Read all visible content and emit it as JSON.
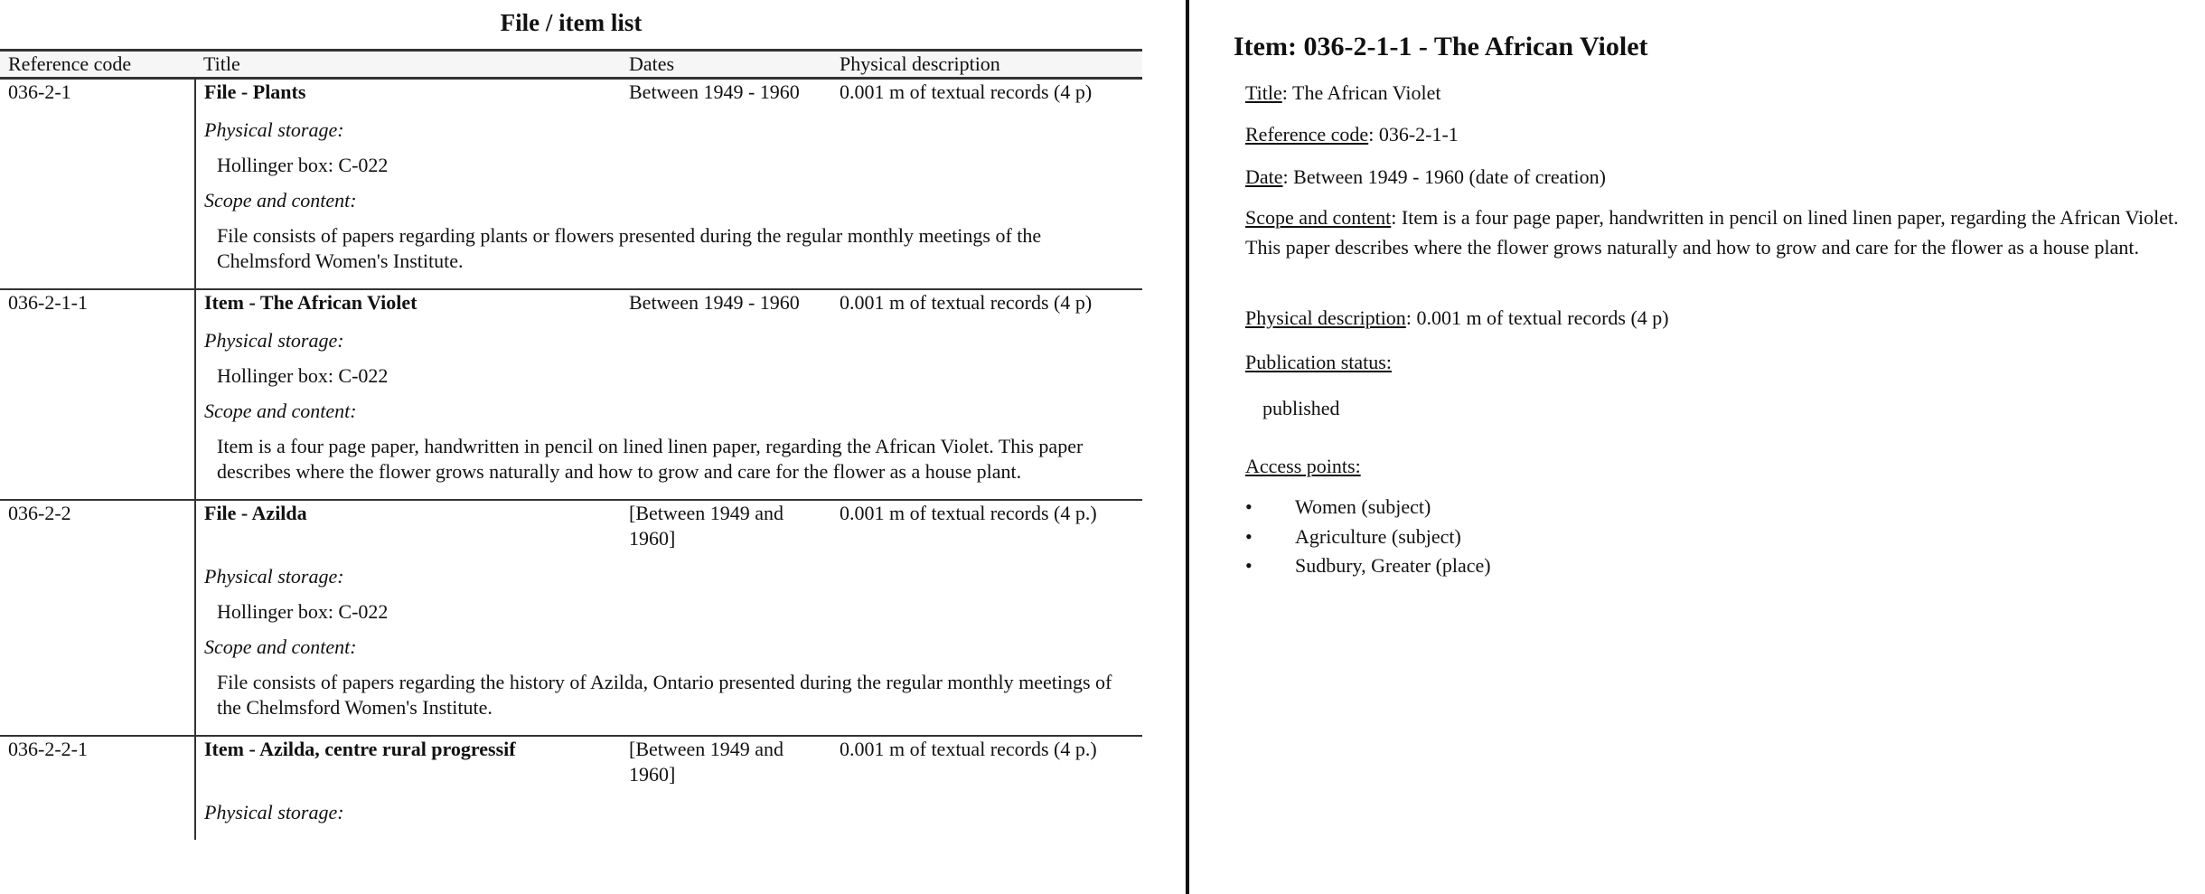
{
  "list": {
    "title": "File / item list",
    "columns": [
      "Reference code",
      "Title",
      "Dates",
      "Physical description"
    ],
    "rows": [
      {
        "ref": "036-2-1",
        "title": "File - Plants",
        "dates": "Between 1949 - 1960",
        "physical": "0.001 m of textual records (4 p)",
        "storage_label": "Physical storage",
        "storage": "Hollinger box: C-022",
        "scope_label": "Scope and content",
        "scope": "File consists of papers regarding plants or flowers presented during the regular monthly meetings of the Chelmsford Women's Institute."
      },
      {
        "ref": "036-2-1-1",
        "title": "Item - The African Violet",
        "dates": "Between 1949 - 1960",
        "physical": "0.001 m of textual records (4 p)",
        "storage_label": "Physical storage",
        "storage": "Hollinger box: C-022",
        "scope_label": "Scope and content",
        "scope": "Item is a four page paper, handwritten in pencil on lined linen paper, regarding the African Violet. This paper describes where the flower grows naturally and how to grow and care for the flower as a house plant."
      },
      {
        "ref": "036-2-2",
        "title": "File - Azilda",
        "dates": "[Between 1949 and 1960]",
        "physical": "0.001 m of textual records (4 p.)",
        "storage_label": "Physical storage",
        "storage": "Hollinger box: C-022",
        "scope_label": "Scope and content",
        "scope": "File consists of papers regarding the history of Azilda, Ontario presented during the regular monthly meetings of the Chelmsford Women's Institute."
      },
      {
        "ref": "036-2-2-1",
        "title": "Item - Azilda, centre rural progressif",
        "dates": "[Between 1949 and 1960]",
        "physical": "0.001 m of textual records (4 p.)",
        "storage_label": "Physical storage"
      }
    ]
  },
  "detail": {
    "heading": "Item: 036-2-1-1 - The African Violet",
    "title_label": "Title",
    "title": "The African Violet",
    "ref_label": "Reference code",
    "ref": "036-2-1-1",
    "date_label": "Date",
    "date": "Between 1949 - 1960 (date of creation)",
    "scope_label": "Scope and content",
    "scope": "Item is a four page paper, handwritten in pencil on lined linen paper, regarding the African Violet. This paper describes where the flower grows naturally and how to grow and care for the flower as a house plant.",
    "physical_label": "Physical description",
    "physical": "0.001 m of textual records (4 p)",
    "pub_label": "Publication status:",
    "pub": "published",
    "access_label": "Access points:",
    "access_points": [
      "Women (subject)",
      "Agriculture (subject)",
      "Sudbury, Greater (place)"
    ],
    "bullet": "•"
  }
}
